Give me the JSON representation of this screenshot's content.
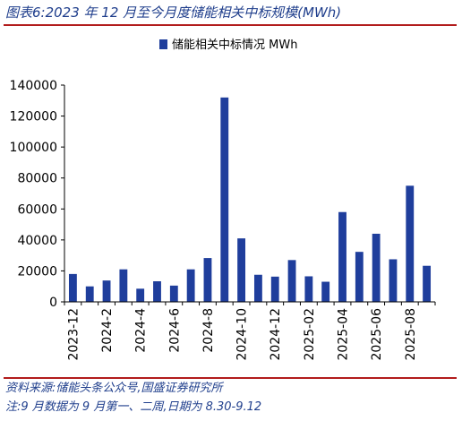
{
  "figure": {
    "title": "图表6:2023 年 12 月至今月度储能相关中标规模(MWh)",
    "source": "资料来源:储能头条公众号,国盛证券研究所",
    "note": "注:9 月数据为 9 月第一、二周,日期为 8.30-9.12"
  },
  "colors": {
    "bar": "#1f3e9c",
    "accent_rule": "#b21c1c",
    "title_text": "#1f3e8c"
  },
  "chart_data": {
    "type": "bar",
    "title": "",
    "xlabel": "",
    "ylabel": "",
    "ylim": [
      0,
      140000
    ],
    "yticks": [
      0,
      20000,
      40000,
      60000,
      80000,
      100000,
      120000,
      140000
    ],
    "ytick_labels": [
      "0",
      "20000",
      "40000",
      "60000",
      "80000",
      "100000",
      "120000",
      "140000"
    ],
    "grid": false,
    "legend_position": "top-center",
    "categories": [
      "2023-12",
      "2024-01",
      "2024-02",
      "2024-03",
      "2024-04",
      "2024-05",
      "2024-06",
      "2024-07",
      "2024-08",
      "2024-09",
      "2024-10",
      "2024-11",
      "2024-12",
      "2025-01",
      "2025-02",
      "2025-03",
      "2025-04",
      "2025-05",
      "2025-06",
      "2025-07",
      "2025-08",
      "2025-09"
    ],
    "xtick_labels": [
      "2023-12",
      "",
      "2024-2",
      "",
      "2024-4",
      "",
      "2024-6",
      "",
      "2024-8",
      "",
      "2024-10",
      "",
      "2024-12",
      "",
      "2025-02",
      "",
      "2025-04",
      "",
      "2025-06",
      "",
      "2025-08",
      ""
    ],
    "series": [
      {
        "name": "储能相关中标情况 MWh",
        "values": [
          18000,
          10000,
          13800,
          21000,
          8500,
          13300,
          10500,
          21000,
          28300,
          132000,
          41000,
          17500,
          16300,
          27000,
          16500,
          13000,
          58000,
          32300,
          44000,
          27500,
          75000,
          23300
        ]
      }
    ]
  }
}
